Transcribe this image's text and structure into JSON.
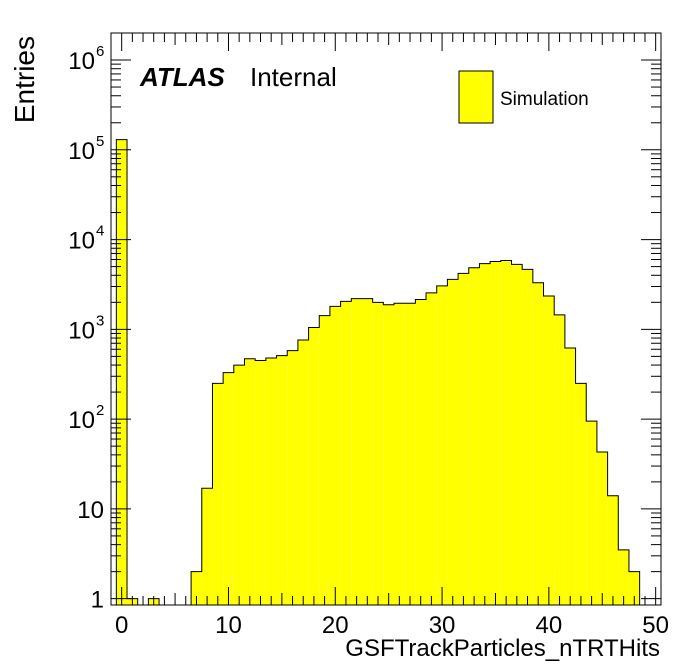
{
  "chart_data": {
    "type": "bar",
    "histogram": true,
    "log_y": true,
    "xlabel": "GSFTrackParticles_nTRTHits",
    "ylabel": "Entries",
    "xlim": [
      -1,
      50.5
    ],
    "ylim": [
      0.85,
      2000000
    ],
    "x_ticks": [
      0,
      10,
      20,
      30,
      40,
      50
    ],
    "y_ticks": [
      {
        "value": 1,
        "label": "1"
      },
      {
        "value": 10,
        "label": "10"
      },
      {
        "value": 100,
        "label": "10",
        "exp": "2"
      },
      {
        "value": 1000,
        "label": "10",
        "exp": "3"
      },
      {
        "value": 10000,
        "label": "10",
        "exp": "4"
      },
      {
        "value": 100000,
        "label": "10",
        "exp": "5"
      },
      {
        "value": 1000000,
        "label": "10",
        "exp": "6"
      }
    ],
    "bin_width": 1,
    "bin_low_edges": [
      -0.5,
      0.5,
      1.5,
      2.5,
      3.5,
      4.5,
      5.5,
      6.5,
      7.5,
      8.5,
      9.5,
      10.5,
      11.5,
      12.5,
      13.5,
      14.5,
      15.5,
      16.5,
      17.5,
      18.5,
      19.5,
      20.5,
      21.5,
      22.5,
      23.5,
      24.5,
      25.5,
      26.5,
      27.5,
      28.5,
      29.5,
      30.5,
      31.5,
      32.5,
      33.5,
      34.5,
      35.5,
      36.5,
      37.5,
      38.5,
      39.5,
      40.5,
      41.5,
      42.5,
      43.5,
      44.5,
      45.5,
      46.5,
      47.5
    ],
    "series": [
      {
        "name": "Simulation",
        "color": "#ffff00",
        "values": [
          130000,
          1,
          0,
          1,
          0,
          0,
          0,
          2,
          17,
          250,
          330,
          400,
          470,
          450,
          480,
          510,
          580,
          760,
          1050,
          1420,
          1800,
          2050,
          2200,
          2200,
          2000,
          1880,
          1950,
          1950,
          2150,
          2550,
          3050,
          3600,
          4200,
          4850,
          5400,
          5700,
          5850,
          5300,
          4650,
          3300,
          2350,
          1450,
          620,
          250,
          95,
          43,
          14,
          3.5,
          2
        ]
      }
    ],
    "legend": {
      "position": "top-right",
      "entries": [
        "Simulation"
      ]
    },
    "annotation": {
      "bold_italic": "ATLAS",
      "normal": "Internal"
    }
  }
}
